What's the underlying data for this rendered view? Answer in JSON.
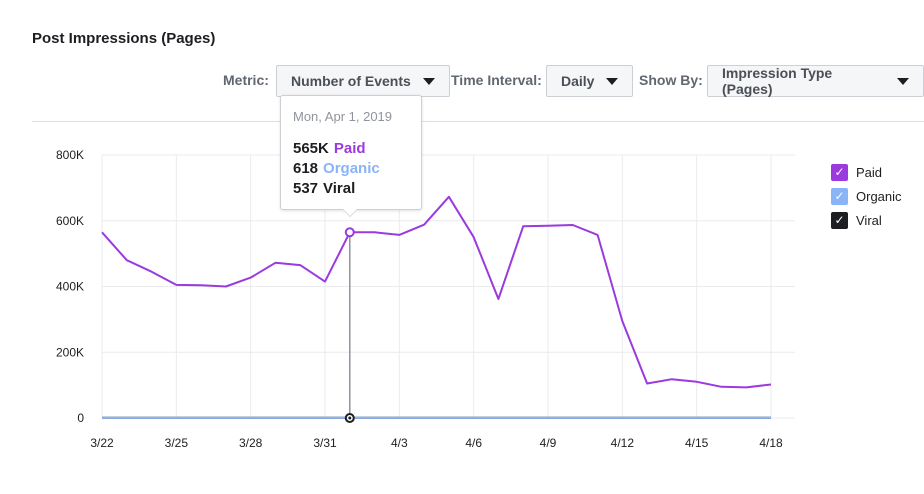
{
  "title": "Post Impressions (Pages)",
  "controls": {
    "metric_label": "Metric:",
    "metric_value": "Number of Events",
    "interval_label": "Time Interval:",
    "interval_value": "Daily",
    "showby_label": "Show By:",
    "showby_value": "Impression Type (Pages)"
  },
  "legend": [
    {
      "label": "Paid",
      "color": "#9b3ade",
      "checked": true
    },
    {
      "label": "Organic",
      "color": "#8ab4f8",
      "checked": true
    },
    {
      "label": "Viral",
      "color": "#1c1e21",
      "checked": true
    }
  ],
  "tooltip": {
    "date": "Mon, Apr 1, 2019",
    "rows": [
      {
        "value": "565K",
        "label": "Paid",
        "color": "#9b3ade"
      },
      {
        "value": "618",
        "label": "Organic",
        "color": "#8ab4f8"
      },
      {
        "value": "537",
        "label": "Viral",
        "color": "#1c1e21"
      }
    ]
  },
  "chart_data": {
    "type": "line",
    "x": [
      "3/22",
      "3/23",
      "3/24",
      "3/25",
      "3/26",
      "3/27",
      "3/28",
      "3/29",
      "3/30",
      "3/31",
      "4/1",
      "4/2",
      "4/3",
      "4/4",
      "4/5",
      "4/6",
      "4/7",
      "4/8",
      "4/9",
      "4/10",
      "4/11",
      "4/12",
      "4/13",
      "4/14",
      "4/15",
      "4/16",
      "4/17",
      "4/18"
    ],
    "x_tick_labels": [
      "3/22",
      "3/25",
      "3/28",
      "3/31",
      "4/3",
      "4/6",
      "4/9",
      "4/12",
      "4/15",
      "4/18"
    ],
    "y_ticks": [
      0,
      200000,
      400000,
      600000,
      800000
    ],
    "y_tick_labels": [
      "0",
      "200K",
      "400K",
      "600K",
      "800K"
    ],
    "ylim": [
      0,
      800000
    ],
    "grid": true,
    "legend_position": "right",
    "highlighted_x": "4/1",
    "series": [
      {
        "name": "Paid",
        "color": "#9b3ade",
        "values": [
          565000,
          480000,
          445000,
          405000,
          404000,
          400000,
          427000,
          472000,
          465000,
          415000,
          565000,
          565000,
          557000,
          588000,
          673000,
          550000,
          362000,
          583000,
          585000,
          587000,
          557000,
          295000,
          105000,
          118000,
          110000,
          95000,
          93000,
          102000
        ]
      },
      {
        "name": "Organic",
        "color": "#8ab4f8",
        "values": [
          600,
          600,
          600,
          600,
          600,
          600,
          600,
          600,
          600,
          600,
          618,
          600,
          600,
          600,
          600,
          600,
          600,
          600,
          600,
          600,
          600,
          600,
          600,
          600,
          600,
          600,
          600,
          600
        ]
      },
      {
        "name": "Viral",
        "color": "#1c1e21",
        "values": [
          500,
          500,
          500,
          500,
          500,
          500,
          500,
          500,
          500,
          500,
          537,
          500,
          500,
          500,
          500,
          500,
          500,
          500,
          500,
          500,
          500,
          500,
          500,
          500,
          500,
          500,
          500,
          500
        ]
      }
    ]
  }
}
